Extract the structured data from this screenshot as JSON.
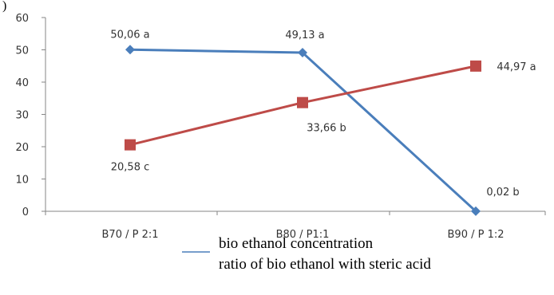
{
  "chart_data": {
    "type": "line",
    "categories": [
      "B70 / P 2:1",
      "B80 / P1:1",
      "B90 / P 1:2"
    ],
    "ylim": [
      0,
      60
    ],
    "yticks": [
      "0",
      "10",
      "20",
      "30",
      "40",
      "50",
      "60"
    ],
    "grid": false,
    "series": [
      {
        "name": "bio ethanol concentration",
        "values": [
          50.06,
          49.13,
          0.02
        ],
        "labels": [
          "50,06 a",
          "49,13 a",
          "0,02 b"
        ],
        "color": "#4a7ebb",
        "marker": "diamond"
      },
      {
        "name": "ratio of bio ethanol with steric acid",
        "values": [
          20.58,
          33.66,
          44.97
        ],
        "labels": [
          "20,58 c",
          "33,66 b",
          "44,97 a"
        ],
        "color": "#be4b48",
        "marker": "square"
      }
    ],
    "legend": "bottom",
    "corner_mark": ")"
  }
}
